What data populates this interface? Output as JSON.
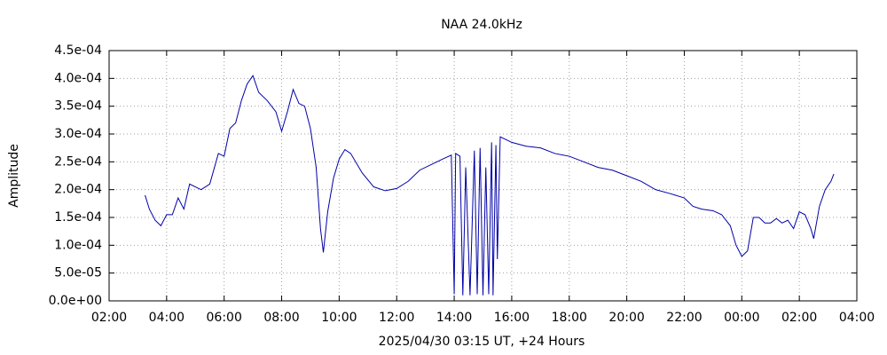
{
  "chart_data": {
    "type": "line",
    "title": "NAA 24.0kHz",
    "x_label": "2025/04/30 03:15 UT, +24 Hours",
    "y_label": "Amplitude",
    "color": "#0000a8",
    "grid": true,
    "xlim": [
      2,
      28
    ],
    "xticks": [
      {
        "value": 2,
        "label": "02:00"
      },
      {
        "value": 4,
        "label": "04:00"
      },
      {
        "value": 6,
        "label": "06:00"
      },
      {
        "value": 8,
        "label": "08:00"
      },
      {
        "value": 10,
        "label": "10:00"
      },
      {
        "value": 12,
        "label": "12:00"
      },
      {
        "value": 14,
        "label": "14:00"
      },
      {
        "value": 16,
        "label": "16:00"
      },
      {
        "value": 18,
        "label": "18:00"
      },
      {
        "value": 20,
        "label": "20:00"
      },
      {
        "value": 22,
        "label": "22:00"
      },
      {
        "value": 24,
        "label": "00:00"
      },
      {
        "value": 26,
        "label": "02:00"
      },
      {
        "value": 28,
        "label": "04:00"
      }
    ],
    "ylim": [
      0,
      0.00045
    ],
    "yticks": [
      {
        "value": 0,
        "label": "0.0e+00"
      },
      {
        "value": 5e-05,
        "label": "5.0e-05"
      },
      {
        "value": 0.0001,
        "label": "1.0e-04"
      },
      {
        "value": 0.00015,
        "label": "1.5e-04"
      },
      {
        "value": 0.0002,
        "label": "2.0e-04"
      },
      {
        "value": 0.00025,
        "label": "2.5e-04"
      },
      {
        "value": 0.0003,
        "label": "3.0e-04"
      },
      {
        "value": 0.00035,
        "label": "3.5e-04"
      },
      {
        "value": 0.0004,
        "label": "4.0e-04"
      },
      {
        "value": 0.00045,
        "label": "4.5e-04"
      }
    ],
    "x": [
      3.25,
      3.4,
      3.6,
      3.8,
      4.0,
      4.2,
      4.4,
      4.6,
      4.8,
      5.0,
      5.2,
      5.5,
      5.8,
      6.0,
      6.2,
      6.4,
      6.6,
      6.8,
      7.0,
      7.2,
      7.5,
      7.8,
      8.0,
      8.2,
      8.4,
      8.6,
      8.8,
      9.0,
      9.2,
      9.35,
      9.45,
      9.6,
      9.8,
      10.0,
      10.2,
      10.4,
      10.8,
      11.2,
      11.6,
      12.0,
      12.4,
      12.8,
      13.2,
      13.6,
      13.9,
      14.0,
      14.05,
      14.2,
      14.3,
      14.4,
      14.55,
      14.7,
      14.8,
      14.9,
      15.0,
      15.1,
      15.2,
      15.3,
      15.35,
      15.45,
      15.5,
      15.6,
      16.0,
      16.5,
      17.0,
      17.5,
      18.0,
      18.5,
      19.0,
      19.5,
      20.0,
      20.5,
      21.0,
      21.5,
      22.0,
      22.3,
      22.6,
      23.0,
      23.3,
      23.6,
      23.8,
      24.0,
      24.2,
      24.4,
      24.6,
      24.8,
      25.0,
      25.2,
      25.4,
      25.6,
      25.8,
      26.0,
      26.2,
      26.4,
      26.5,
      26.7,
      26.9,
      27.1,
      27.2
    ],
    "values": [
      0.00019,
      0.000165,
      0.000145,
      0.000135,
      0.000155,
      0.000155,
      0.000185,
      0.000165,
      0.00021,
      0.000205,
      0.0002,
      0.00021,
      0.000265,
      0.00026,
      0.00031,
      0.00032,
      0.00036,
      0.00039,
      0.000405,
      0.000375,
      0.00036,
      0.00034,
      0.000305,
      0.00034,
      0.00038,
      0.000355,
      0.00035,
      0.00031,
      0.00024,
      0.00013,
      8.7e-05,
      0.00016,
      0.00022,
      0.000255,
      0.000272,
      0.000265,
      0.00023,
      0.000205,
      0.000198,
      0.000202,
      0.000215,
      0.000235,
      0.000245,
      0.000255,
      0.000262,
      1.2e-05,
      0.000265,
      0.00026,
      1e-05,
      0.00024,
      1e-05,
      0.00027,
      1.2e-05,
      0.000275,
      1e-05,
      0.00024,
      1.2e-05,
      0.000285,
      1e-05,
      0.00028,
      7.5e-05,
      0.000295,
      0.000285,
      0.000278,
      0.000275,
      0.000265,
      0.00026,
      0.00025,
      0.00024,
      0.000235,
      0.000225,
      0.000215,
      0.0002,
      0.000193,
      0.000185,
      0.00017,
      0.000165,
      0.000162,
      0.000155,
      0.000135,
      0.0001,
      8e-05,
      9e-05,
      0.00015,
      0.00015,
      0.00014,
      0.00014,
      0.000148,
      0.00014,
      0.000145,
      0.00013,
      0.00016,
      0.000155,
      0.00013,
      0.000112,
      0.00017,
      0.0002,
      0.000215,
      0.000228
    ]
  }
}
